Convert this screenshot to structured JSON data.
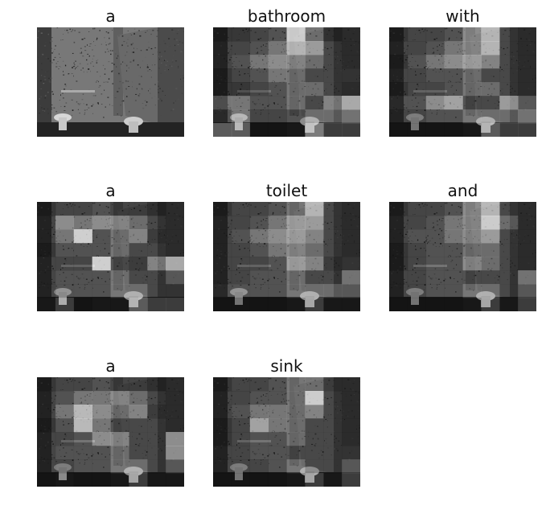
{
  "figure": {
    "panels": [
      {
        "word": "a",
        "variant": "original"
      },
      {
        "word": "bathroom",
        "variant": "attention"
      },
      {
        "word": "with",
        "variant": "attention"
      },
      {
        "word": "a",
        "variant": "attention"
      },
      {
        "word": "toilet",
        "variant": "attention"
      },
      {
        "word": "and",
        "variant": "attention"
      },
      {
        "word": "a",
        "variant": "attention"
      },
      {
        "word": "sink",
        "variant": "attention"
      }
    ]
  },
  "colors": {
    "background": "#ffffff",
    "title": "#111111"
  }
}
